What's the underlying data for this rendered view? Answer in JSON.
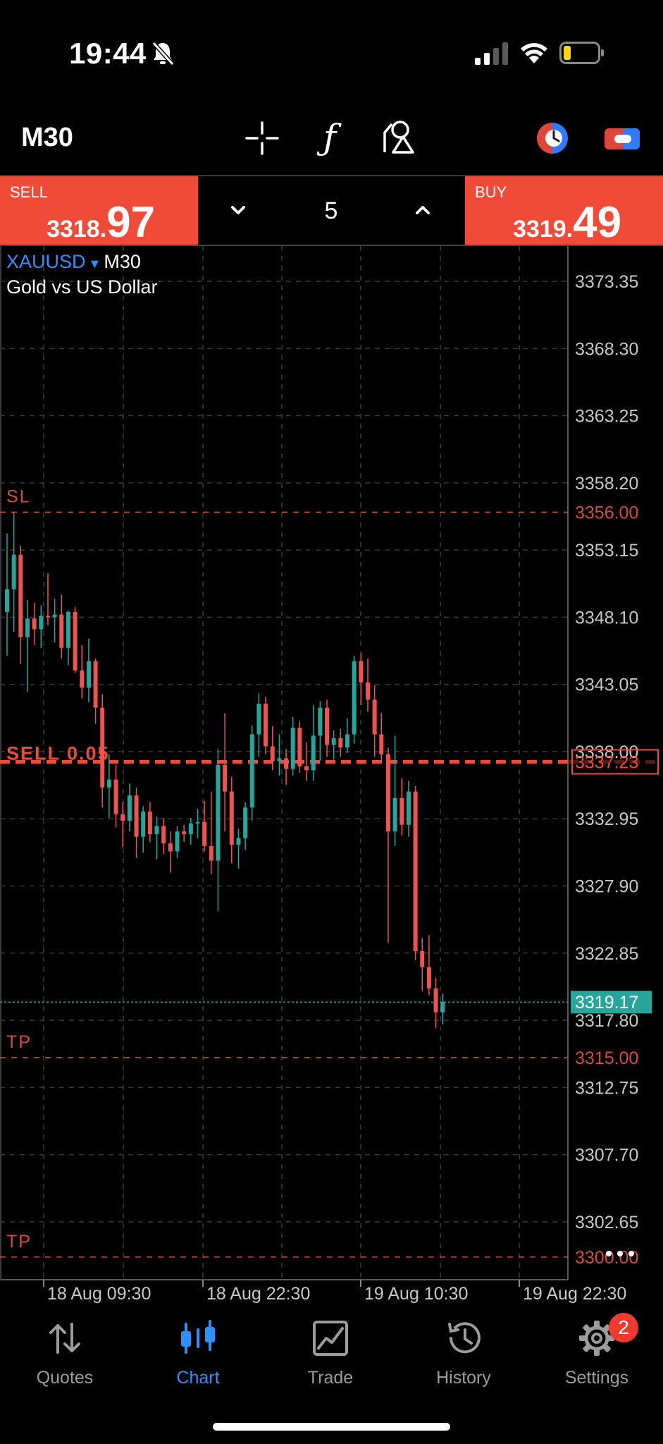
{
  "status_bar": {
    "time": "19:44"
  },
  "toolbar": {
    "timeframe": "M30",
    "func_symbol": "ƒ"
  },
  "trade": {
    "sell_label": "SELL",
    "sell_price_small": "3318.",
    "sell_price_big": "97",
    "buy_label": "BUY",
    "buy_price_small": "3319.",
    "buy_price_big": "49",
    "volume": "5"
  },
  "chart_header": {
    "symbol": "XAUUSD",
    "timeframe": "M30",
    "description": "Gold vs US Dollar"
  },
  "chart_data": {
    "type": "candlestick",
    "y_ticks": [
      "3373.35",
      "3368.30",
      "3363.25",
      "3358.20",
      "3353.15",
      "3348.10",
      "3343.05",
      "3338.00",
      "3332.95",
      "3327.90",
      "3322.85",
      "3317.80",
      "3312.75",
      "3307.70",
      "3302.65"
    ],
    "y_tick_values": [
      3373.35,
      3368.3,
      3363.25,
      3358.2,
      3353.15,
      3348.1,
      3343.05,
      3338.0,
      3332.95,
      3327.9,
      3322.85,
      3317.8,
      3312.75,
      3307.7,
      3302.65
    ],
    "x_ticks": [
      "18 Aug 09:30",
      "18 Aug 22:30",
      "19 Aug 10:30",
      "19 Aug 22:30"
    ],
    "ylim": [
      3298.3,
      3376.0
    ],
    "levels": [
      {
        "label": "SL",
        "value": 3356.0,
        "price_text": "3356.00",
        "color": "#d94a3c"
      },
      {
        "label": "SELL 0.05",
        "value": 3337.23,
        "price_text": "3337.23",
        "color": "#f04a39"
      },
      {
        "label": "TP",
        "value": 3315.0,
        "price_text": "3315.00",
        "color": "#d94a3c"
      },
      {
        "label": "TP",
        "value": 3300.0,
        "price_text": "3300.00",
        "color": "#d94a3c"
      }
    ],
    "current_price": {
      "value": 3319.17,
      "text": "3319.17",
      "color": "#26a69a"
    },
    "up_color": "#26a69a",
    "down_color": "#ef5350",
    "candles": [
      {
        "o": 3348.5,
        "h": 3354.4,
        "l": 3345.2,
        "c": 3350.2
      },
      {
        "o": 3350.2,
        "h": 3356.0,
        "l": 3347.0,
        "c": 3352.8
      },
      {
        "o": 3352.8,
        "h": 3353.5,
        "l": 3344.6,
        "c": 3346.6
      },
      {
        "o": 3346.6,
        "h": 3349.4,
        "l": 3342.5,
        "c": 3348.0
      },
      {
        "o": 3348.0,
        "h": 3349.2,
        "l": 3346.0,
        "c": 3347.2
      },
      {
        "o": 3347.2,
        "h": 3349.0,
        "l": 3345.8,
        "c": 3348.2
      },
      {
        "o": 3348.2,
        "h": 3351.4,
        "l": 3347.5,
        "c": 3348.1
      },
      {
        "o": 3348.1,
        "h": 3349.5,
        "l": 3346.2,
        "c": 3348.3
      },
      {
        "o": 3348.3,
        "h": 3349.8,
        "l": 3345.0,
        "c": 3345.8
      },
      {
        "o": 3345.8,
        "h": 3348.6,
        "l": 3344.5,
        "c": 3348.5
      },
      {
        "o": 3348.5,
        "h": 3348.9,
        "l": 3343.9,
        "c": 3344.1
      },
      {
        "o": 3344.1,
        "h": 3346.0,
        "l": 3342.0,
        "c": 3342.8
      },
      {
        "o": 3342.8,
        "h": 3346.5,
        "l": 3341.7,
        "c": 3344.8
      },
      {
        "o": 3344.8,
        "h": 3345.0,
        "l": 3340.1,
        "c": 3341.3
      },
      {
        "o": 3341.3,
        "h": 3342.3,
        "l": 3333.8,
        "c": 3335.3
      },
      {
        "o": 3335.3,
        "h": 3337.8,
        "l": 3333.0,
        "c": 3335.9
      },
      {
        "o": 3335.9,
        "h": 3337.0,
        "l": 3332.3,
        "c": 3333.3
      },
      {
        "o": 3333.3,
        "h": 3334.2,
        "l": 3330.8,
        "c": 3332.8
      },
      {
        "o": 3332.8,
        "h": 3335.6,
        "l": 3332.0,
        "c": 3334.7
      },
      {
        "o": 3334.7,
        "h": 3335.3,
        "l": 3330.0,
        "c": 3331.6
      },
      {
        "o": 3331.6,
        "h": 3333.9,
        "l": 3330.4,
        "c": 3333.5
      },
      {
        "o": 3333.5,
        "h": 3334.2,
        "l": 3331.2,
        "c": 3331.8
      },
      {
        "o": 3331.8,
        "h": 3333.1,
        "l": 3329.9,
        "c": 3332.4
      },
      {
        "o": 3332.4,
        "h": 3333.0,
        "l": 3330.3,
        "c": 3331.1
      },
      {
        "o": 3331.1,
        "h": 3332.0,
        "l": 3328.9,
        "c": 3330.5
      },
      {
        "o": 3330.5,
        "h": 3332.4,
        "l": 3330.0,
        "c": 3332.0
      },
      {
        "o": 3332.0,
        "h": 3332.5,
        "l": 3331.2,
        "c": 3331.8
      },
      {
        "o": 3331.8,
        "h": 3333.0,
        "l": 3331.0,
        "c": 3332.6
      },
      {
        "o": 3332.6,
        "h": 3333.7,
        "l": 3331.5,
        "c": 3332.7
      },
      {
        "o": 3332.7,
        "h": 3334.3,
        "l": 3330.5,
        "c": 3330.9
      },
      {
        "o": 3330.9,
        "h": 3335.0,
        "l": 3328.8,
        "c": 3329.8
      },
      {
        "o": 3329.8,
        "h": 3338.2,
        "l": 3326.0,
        "c": 3337.0
      },
      {
        "o": 3337.0,
        "h": 3340.9,
        "l": 3332.0,
        "c": 3335.0
      },
      {
        "o": 3335.0,
        "h": 3336.1,
        "l": 3329.6,
        "c": 3331.0
      },
      {
        "o": 3331.0,
        "h": 3332.2,
        "l": 3329.2,
        "c": 3331.5
      },
      {
        "o": 3331.5,
        "h": 3334.2,
        "l": 3330.6,
        "c": 3333.8
      },
      {
        "o": 3333.8,
        "h": 3340.0,
        "l": 3332.8,
        "c": 3339.3
      },
      {
        "o": 3339.3,
        "h": 3342.4,
        "l": 3337.6,
        "c": 3341.6
      },
      {
        "o": 3341.6,
        "h": 3342.1,
        "l": 3337.8,
        "c": 3338.4
      },
      {
        "o": 3338.4,
        "h": 3339.9,
        "l": 3336.6,
        "c": 3337.3
      },
      {
        "o": 3337.3,
        "h": 3339.3,
        "l": 3336.2,
        "c": 3337.5
      },
      {
        "o": 3337.5,
        "h": 3338.2,
        "l": 3335.5,
        "c": 3336.7
      },
      {
        "o": 3336.7,
        "h": 3340.6,
        "l": 3336.2,
        "c": 3339.8
      },
      {
        "o": 3339.8,
        "h": 3340.3,
        "l": 3336.4,
        "c": 3336.9
      },
      {
        "o": 3336.9,
        "h": 3338.7,
        "l": 3335.8,
        "c": 3336.6
      },
      {
        "o": 3336.6,
        "h": 3341.5,
        "l": 3335.8,
        "c": 3339.2
      },
      {
        "o": 3339.2,
        "h": 3341.8,
        "l": 3337.3,
        "c": 3341.3
      },
      {
        "o": 3341.3,
        "h": 3341.9,
        "l": 3337.6,
        "c": 3338.5
      },
      {
        "o": 3338.5,
        "h": 3339.6,
        "l": 3337.4,
        "c": 3339.0
      },
      {
        "o": 3339.0,
        "h": 3339.7,
        "l": 3337.6,
        "c": 3338.3
      },
      {
        "o": 3338.3,
        "h": 3340.5,
        "l": 3337.9,
        "c": 3339.3
      },
      {
        "o": 3339.3,
        "h": 3345.2,
        "l": 3338.6,
        "c": 3344.8
      },
      {
        "o": 3344.8,
        "h": 3345.4,
        "l": 3341.5,
        "c": 3343.2
      },
      {
        "o": 3343.2,
        "h": 3345.0,
        "l": 3341.0,
        "c": 3341.9
      },
      {
        "o": 3341.9,
        "h": 3343.0,
        "l": 3337.6,
        "c": 3339.3
      },
      {
        "o": 3339.3,
        "h": 3340.9,
        "l": 3337.1,
        "c": 3337.8
      },
      {
        "o": 3337.8,
        "h": 3338.3,
        "l": 3323.6,
        "c": 3332.0
      },
      {
        "o": 3332.0,
        "h": 3339.2,
        "l": 3330.9,
        "c": 3334.5
      },
      {
        "o": 3334.5,
        "h": 3336.0,
        "l": 3331.7,
        "c": 3332.5
      },
      {
        "o": 3332.5,
        "h": 3335.8,
        "l": 3331.6,
        "c": 3335.0
      },
      {
        "o": 3335.0,
        "h": 3335.4,
        "l": 3322.3,
        "c": 3323.0
      },
      {
        "o": 3323.0,
        "h": 3324.0,
        "l": 3320.0,
        "c": 3321.8
      },
      {
        "o": 3321.8,
        "h": 3324.2,
        "l": 3319.7,
        "c": 3320.2
      },
      {
        "o": 3320.2,
        "h": 3321.0,
        "l": 3317.2,
        "c": 3318.4
      },
      {
        "o": 3318.4,
        "h": 3319.8,
        "l": 3317.5,
        "c": 3319.2
      }
    ]
  },
  "nav": {
    "quotes": "Quotes",
    "chart": "Chart",
    "trade": "Trade",
    "history": "History",
    "settings": "Settings",
    "settings_badge": "2"
  }
}
